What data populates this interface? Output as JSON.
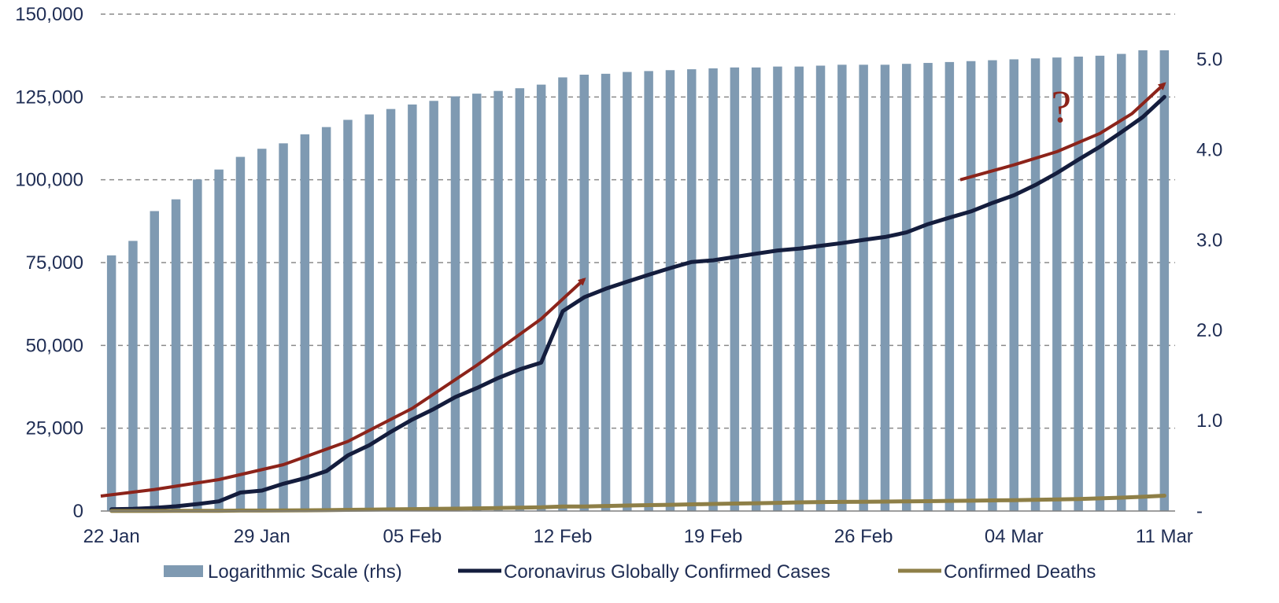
{
  "chart_data": {
    "type": "bar",
    "title": "",
    "xlabel": "",
    "ylabel": "",
    "categories": [
      "22 Jan",
      "23 Jan",
      "24 Jan",
      "25 Jan",
      "26 Jan",
      "27 Jan",
      "28 Jan",
      "29 Jan",
      "30 Jan",
      "31 Jan",
      "01 Feb",
      "02 Feb",
      "03 Feb",
      "04 Feb",
      "05 Feb",
      "06 Feb",
      "07 Feb",
      "08 Feb",
      "09 Feb",
      "10 Feb",
      "11 Feb",
      "12 Feb",
      "13 Feb",
      "14 Feb",
      "15 Feb",
      "16 Feb",
      "17 Feb",
      "18 Feb",
      "19 Feb",
      "20 Feb",
      "21 Feb",
      "22 Feb",
      "23 Feb",
      "24 Feb",
      "25 Feb",
      "26 Feb",
      "27 Feb",
      "28 Feb",
      "29 Feb",
      "01 Mar",
      "02 Mar",
      "03 Mar",
      "04 Mar",
      "05 Mar",
      "06 Mar",
      "07 Mar",
      "08 Mar",
      "09 Mar",
      "10 Mar",
      "11 Mar"
    ],
    "x_tick_labels": [
      "22 Jan",
      "29 Jan",
      "05 Feb",
      "12 Feb",
      "19 Feb",
      "26 Feb",
      "04 Mar",
      "11 Mar"
    ],
    "x_tick_indices": [
      0,
      7,
      14,
      21,
      28,
      35,
      42,
      49
    ],
    "y_left": {
      "ticks": [
        "0",
        "25,000",
        "50,000",
        "75,000",
        "100,000",
        "125,000",
        "150,000"
      ],
      "values": [
        0,
        25000,
        50000,
        75000,
        100000,
        125000,
        150000
      ],
      "ylim": [
        0,
        150000
      ]
    },
    "y_right": {
      "ticks": [
        "-",
        "1.0",
        "2.0",
        "3.0",
        "4.0",
        "5.0"
      ],
      "values": [
        0,
        1,
        2,
        3,
        4,
        5
      ],
      "ylim": [
        0,
        5.5
      ]
    },
    "grid": true,
    "legend_position": "bottom",
    "series": [
      {
        "name": "Logarithmic Scale (rhs)",
        "kind": "bar",
        "axis": "right",
        "color": "#7f9ab2",
        "values": [
          2.83,
          2.99,
          3.32,
          3.45,
          3.67,
          3.78,
          3.92,
          4.01,
          4.07,
          4.17,
          4.25,
          4.33,
          4.39,
          4.45,
          4.5,
          4.54,
          4.59,
          4.62,
          4.65,
          4.68,
          4.72,
          4.8,
          4.83,
          4.84,
          4.86,
          4.87,
          4.88,
          4.89,
          4.9,
          4.91,
          4.91,
          4.92,
          4.92,
          4.93,
          4.94,
          4.94,
          4.94,
          4.95,
          4.96,
          4.97,
          4.98,
          4.99,
          5.0,
          5.01,
          5.02,
          5.03,
          5.04,
          5.06,
          5.1,
          5.1
        ]
      },
      {
        "name": "Coronavirus Globally Confirmed Cases",
        "kind": "line",
        "axis": "left",
        "color": "#141d3d",
        "values": [
          555,
          654,
          941,
          1434,
          2118,
          2927,
          5578,
          6166,
          8235,
          9927,
          12038,
          16787,
          19881,
          23892,
          27636,
          30818,
          34392,
          37121,
          40151,
          42763,
          44803,
          60329,
          64543,
          67103,
          69265,
          71332,
          73327,
          75184,
          75700,
          76677,
          77673,
          78651,
          79205,
          80088,
          80886,
          81865,
          82746,
          84112,
          86604,
          88585,
          90443,
          93016,
          95314,
          98425,
          102050,
          106099,
          109991,
          114381,
          118948,
          125000
        ]
      },
      {
        "name": "Confirmed Deaths",
        "kind": "line",
        "axis": "left",
        "color": "#8e7f47",
        "values": [
          17,
          18,
          26,
          42,
          56,
          82,
          131,
          133,
          171,
          213,
          259,
          362,
          426,
          492,
          564,
          634,
          719,
          806,
          906,
          1013,
          1113,
          1369,
          1383,
          1526,
          1669,
          1775,
          1873,
          2009,
          2126,
          2247,
          2360,
          2460,
          2618,
          2699,
          2763,
          2800,
          2858,
          2923,
          2977,
          3050,
          3117,
          3202,
          3285,
          3387,
          3494,
          3599,
          3827,
          4025,
          4296,
          4627
        ]
      }
    ],
    "annotations": {
      "arrow_color": "#8c231a",
      "question_mark": "?"
    }
  }
}
